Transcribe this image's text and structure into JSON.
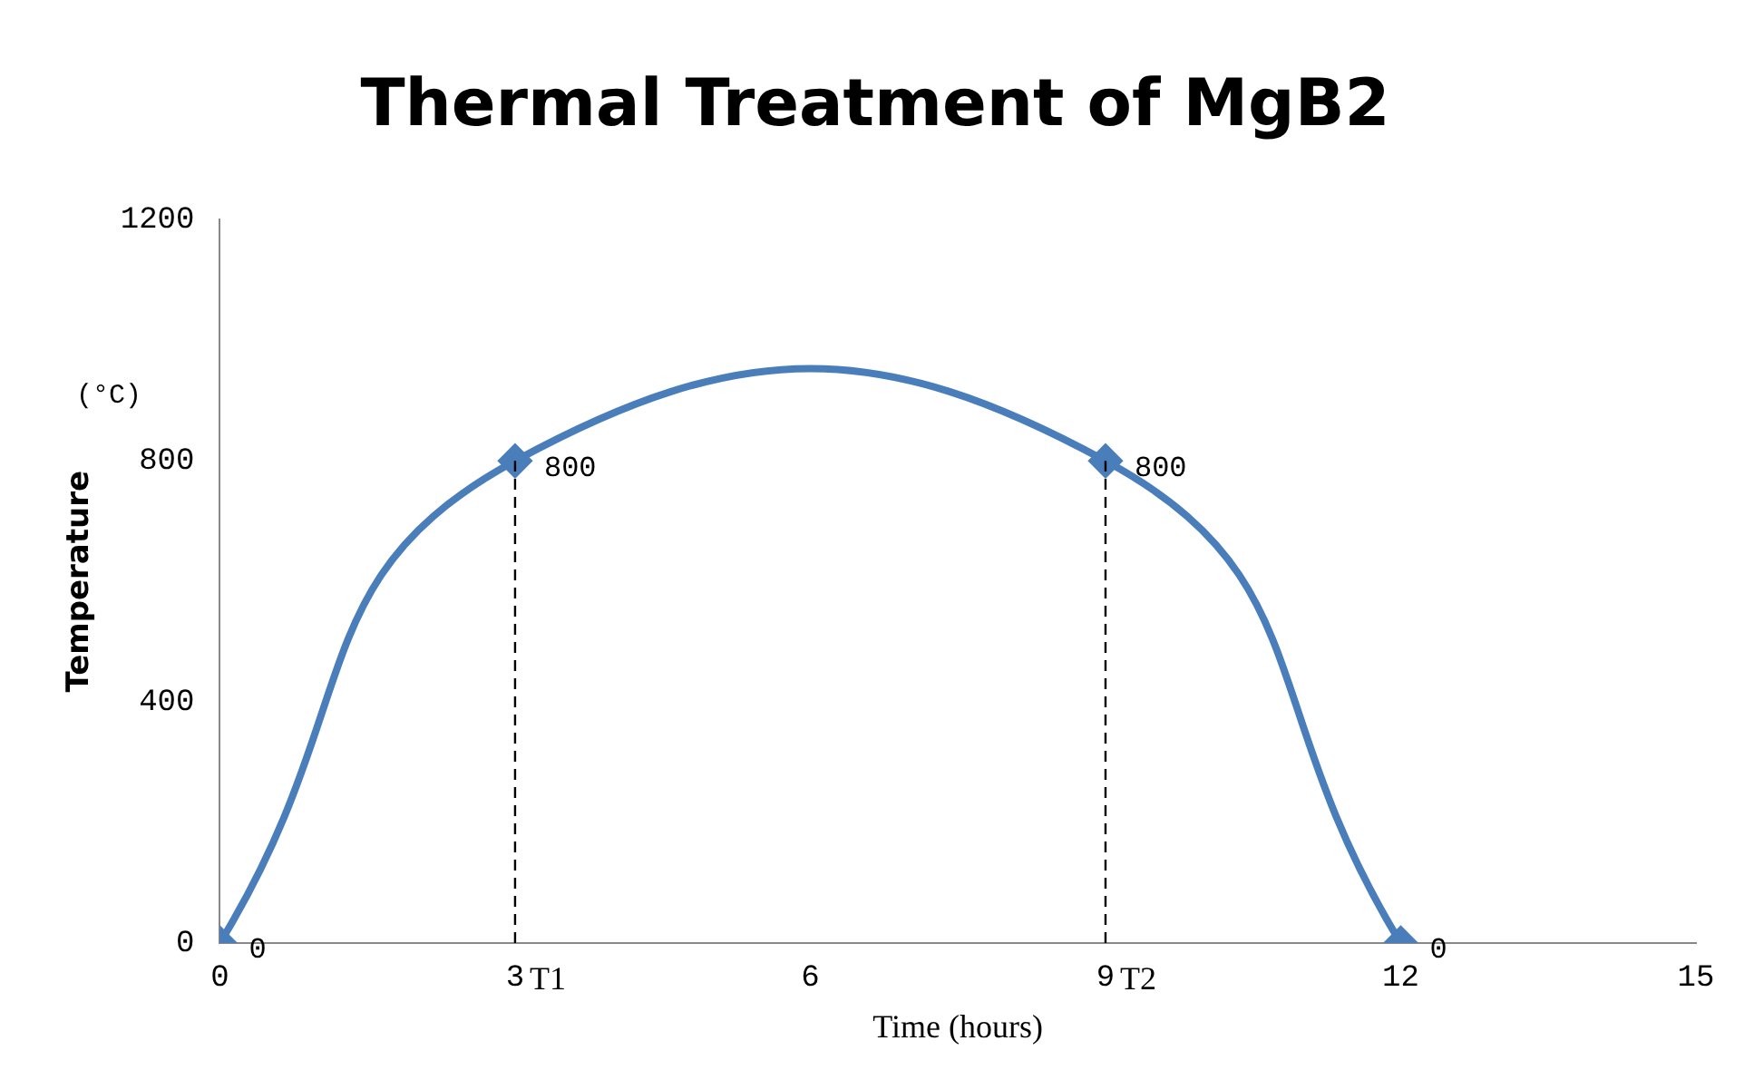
{
  "chart_data": {
    "type": "line",
    "title": "Thermal Treatment of MgB2",
    "xlabel": "Time (hours)",
    "ylabel": "Temperature",
    "annotations": [
      "(°C)"
    ],
    "x": [
      0,
      3,
      9,
      12
    ],
    "series": [
      {
        "color": "#4a7ebb",
        "values": [
          0,
          800,
          800,
          0
        ]
      }
    ],
    "xlim": [
      0,
      15
    ],
    "xticks": [
      0,
      3,
      6,
      9,
      12,
      15
    ],
    "ylim": [
      0,
      1200
    ],
    "yticks": [
      0,
      400,
      800,
      1200
    ],
    "ref_lines": [
      {
        "axis": "x",
        "value": 3,
        "label": "T1",
        "line_style": "dashed",
        "color": "#000000"
      },
      {
        "axis": "x",
        "value": 9,
        "label": "T2",
        "line_style": "dashed",
        "color": "#000000"
      }
    ],
    "data_labels": true,
    "grid": false,
    "legend": false,
    "marker": "diamond",
    "line_style": "solid"
  }
}
